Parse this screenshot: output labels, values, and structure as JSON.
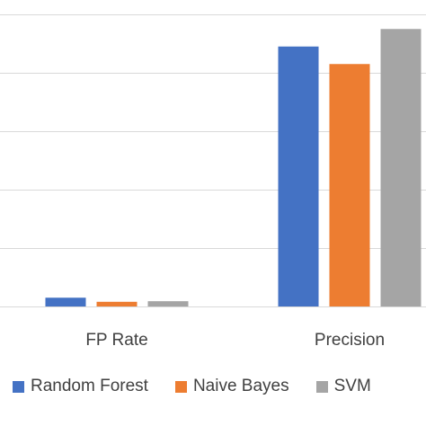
{
  "chart_data": {
    "type": "bar",
    "categories": [
      "FP Rate",
      "Precision"
    ],
    "series": [
      {
        "name": "Random Forest",
        "color": "#4472C4",
        "values": [
          0.03,
          0.89
        ]
      },
      {
        "name": "Naive Bayes",
        "color": "#ED7D31",
        "values": [
          0.016,
          0.83
        ]
      },
      {
        "name": "SVM",
        "color": "#A5A5A5",
        "values": [
          0.018,
          0.95
        ]
      }
    ],
    "ylim": [
      0,
      1.0
    ],
    "grid": true,
    "legend_position": "bottom"
  }
}
